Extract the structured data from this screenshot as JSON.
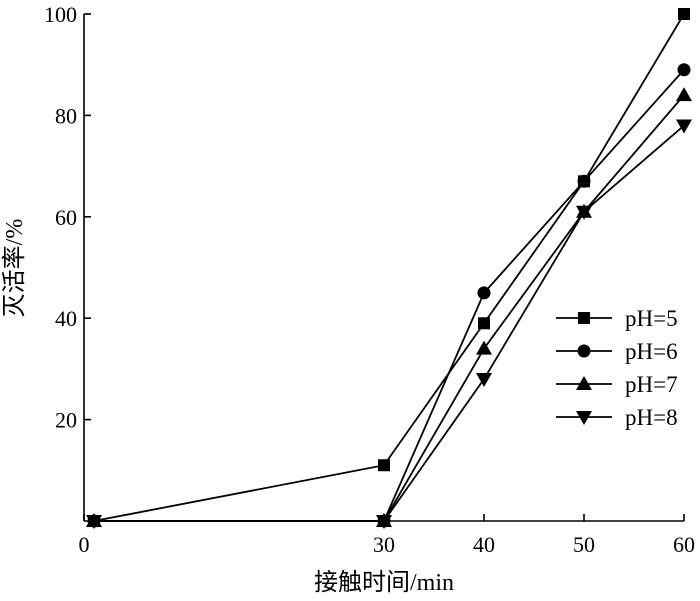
{
  "chart_data": {
    "type": "line",
    "xlabel": "接触时间/min",
    "ylabel": "灭活率/%",
    "xlim": [
      0,
      60
    ],
    "ylim": [
      0,
      100
    ],
    "x_ticks": [
      0,
      30,
      40,
      50,
      60
    ],
    "y_ticks": [
      20,
      40,
      60,
      80,
      100
    ],
    "grid": false,
    "legend_position": "right",
    "series": [
      {
        "name": "pH=5",
        "marker": "square",
        "x": [
          1,
          30,
          40,
          50,
          60
        ],
        "values": [
          0,
          11,
          39,
          67,
          100
        ]
      },
      {
        "name": "pH=6",
        "marker": "circle",
        "x": [
          1,
          30,
          40,
          50,
          60
        ],
        "values": [
          0,
          0,
          45,
          67,
          89
        ]
      },
      {
        "name": "pH=7",
        "marker": "triangle-up",
        "x": [
          1,
          30,
          40,
          50,
          60
        ],
        "values": [
          0,
          0,
          34,
          61,
          84
        ]
      },
      {
        "name": "pH=8",
        "marker": "triangle-down",
        "x": [
          1,
          30,
          40,
          50,
          60
        ],
        "values": [
          0,
          0,
          28,
          61,
          78
        ]
      }
    ]
  }
}
